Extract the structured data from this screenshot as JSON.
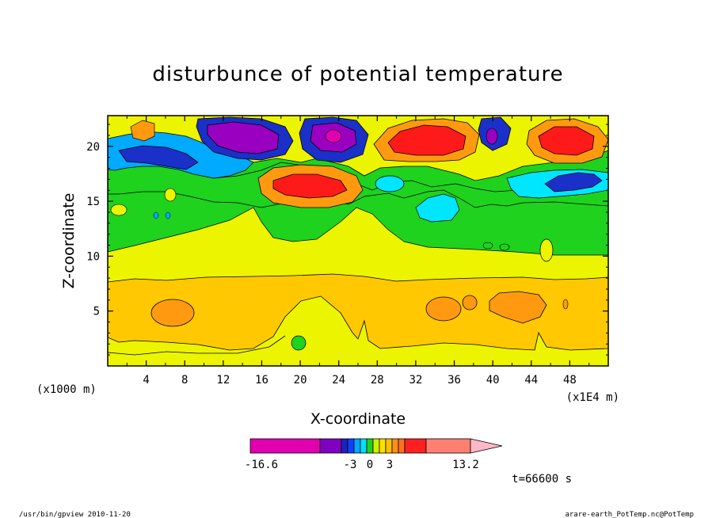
{
  "chart_data": {
    "type": "heatmap",
    "title": "disturbunce of potential temperature",
    "xlabel": "X-coordinate",
    "ylabel": "Z-coordinate",
    "x_units_left": "(x1000 m)",
    "x_units_right": "(x1E4 m)",
    "xlim": [
      0,
      52
    ],
    "ylim": [
      0,
      22.8
    ],
    "x_ticks": [
      4,
      8,
      12,
      16,
      20,
      24,
      28,
      32,
      36,
      40,
      44,
      48
    ],
    "y_ticks": [
      5,
      10,
      15,
      20
    ],
    "time_label": "t=66600 s",
    "colorbar": {
      "colors": [
        "#e000b0",
        "#8000c0",
        "#2020c0",
        "#1040ff",
        "#00a8ff",
        "#00e0ff",
        "#20d020",
        "#d0f000",
        "#ffe000",
        "#ffc000",
        "#ff9010",
        "#ff7020",
        "#ff2020",
        "#ff8070",
        "#ffb8c8"
      ],
      "tick_labels": [
        "-16.6",
        "-3",
        "0",
        "3",
        "13.2"
      ]
    },
    "features": [
      {
        "type": "band",
        "level": "yellow",
        "color": "#ecf400",
        "z_range": [
          0,
          1.5
        ]
      },
      {
        "type": "band",
        "level": "light-orange",
        "color": "#ffc800",
        "z_range": [
          2,
          8
        ]
      },
      {
        "type": "band",
        "level": "yellow",
        "color": "#ecf400",
        "z_range": [
          8,
          11
        ]
      },
      {
        "type": "cell",
        "level": "max",
        "color": "#ff1a1a",
        "x": 20,
        "z": 17
      },
      {
        "type": "cell",
        "level": "max",
        "color": "#ff1a1a",
        "x": 33,
        "z": 20.5
      },
      {
        "type": "cell",
        "level": "max",
        "color": "#ff1a1a",
        "x": 46,
        "z": 20.5
      },
      {
        "type": "cell",
        "level": "min",
        "color": "#9a00c0",
        "x": 14,
        "z": 20.5
      },
      {
        "type": "cell",
        "level": "min",
        "color": "#9a00c0",
        "x": 23,
        "z": 20.5
      },
      {
        "type": "cell",
        "level": "min",
        "color": "#9a00c0",
        "x": 39.5,
        "z": 20.5
      },
      {
        "type": "cell",
        "level": "cold",
        "color": "#1a30c8",
        "x": 47,
        "z": 16.8
      },
      {
        "type": "cell",
        "level": "warm",
        "color": "#ff9a10",
        "x": 6.5,
        "z": 4.8
      },
      {
        "type": "cell",
        "level": "warm",
        "color": "#ff9a10",
        "x": 35,
        "z": 5
      },
      {
        "type": "cell",
        "level": "warm",
        "color": "#ff9a10",
        "x": 42.5,
        "z": 5
      }
    ]
  },
  "footer": {
    "left": "/usr/bin/gpview  2010-11-20",
    "right": "arare-earth_PotTemp.nc@PotTemp"
  }
}
